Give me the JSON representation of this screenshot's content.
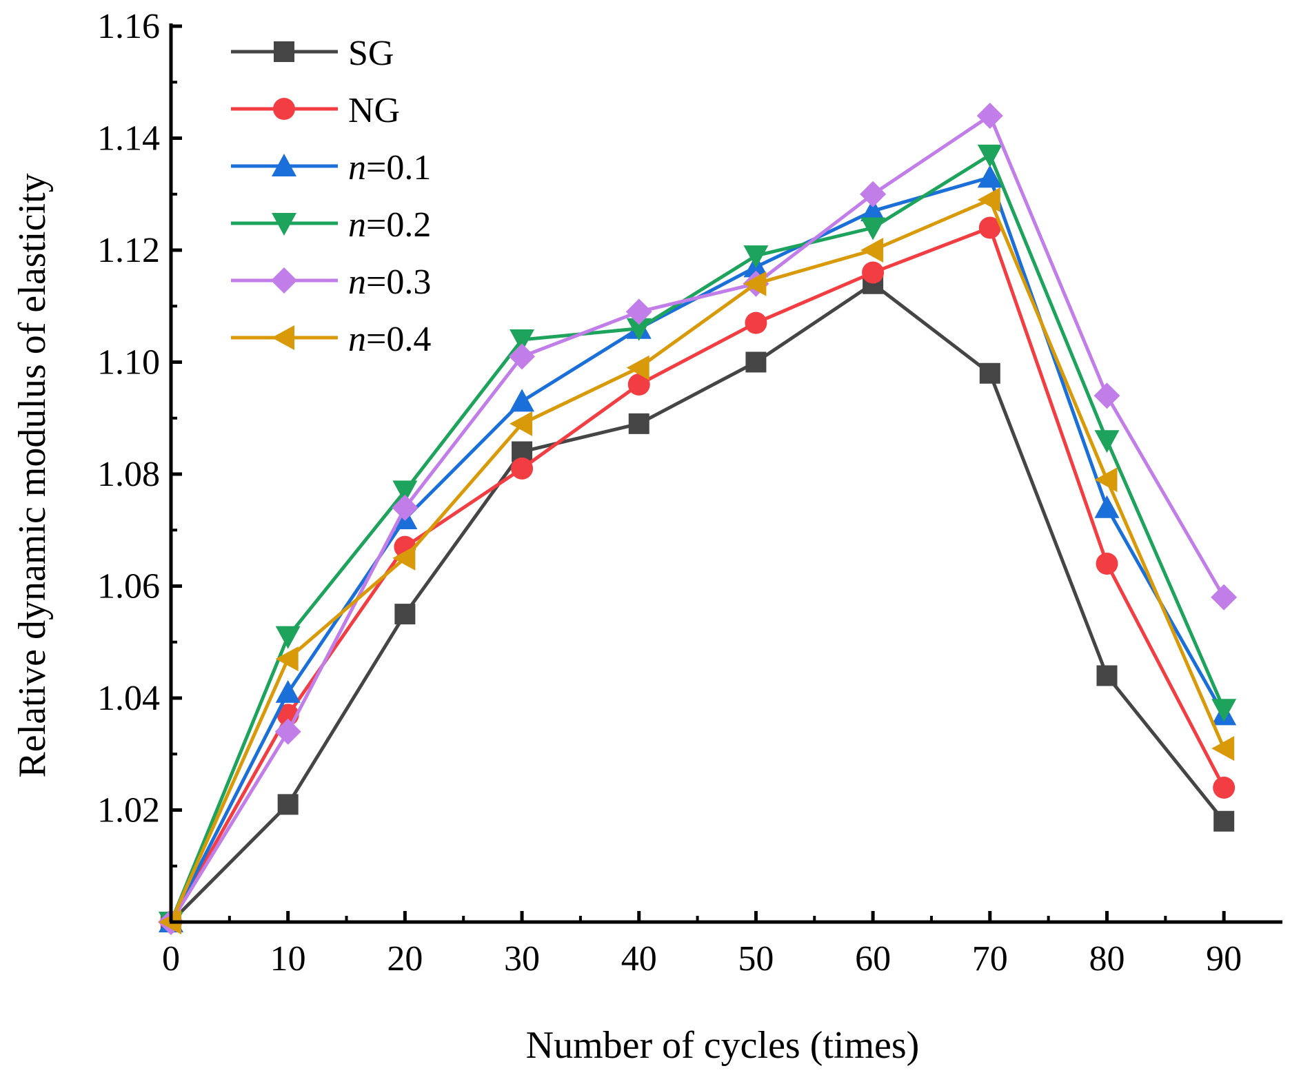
{
  "chart_data": {
    "type": "line",
    "title": "",
    "xlabel": "Number of cycles (times)",
    "ylabel": "Relative dynamic modulus of elasticity",
    "x": [
      0,
      10,
      20,
      30,
      40,
      50,
      60,
      70,
      80,
      90
    ],
    "xlim": [
      0,
      95
    ],
    "ylim": [
      1.0,
      1.16
    ],
    "xticks": [
      "0",
      "10",
      "20",
      "30",
      "40",
      "50",
      "60",
      "70",
      "80",
      "90"
    ],
    "yticks": [
      "1.02",
      "1.04",
      "1.06",
      "1.08",
      "1.10",
      "1.12",
      "1.14",
      "1.16"
    ],
    "ytick_values": [
      1.02,
      1.04,
      1.06,
      1.08,
      1.1,
      1.12,
      1.14,
      1.16
    ],
    "grid": false,
    "legend_position": "top-left",
    "series": [
      {
        "name": "SG",
        "prefix": "",
        "suffix": "SG",
        "marker": "square",
        "color": "#454545",
        "values": [
          1.0,
          1.021,
          1.055,
          1.084,
          1.089,
          1.1,
          1.114,
          1.098,
          1.044,
          1.018
        ]
      },
      {
        "name": "NG",
        "prefix": "",
        "suffix": "NG",
        "marker": "circle",
        "color": "#f23e42",
        "values": [
          1.0,
          1.037,
          1.067,
          1.081,
          1.096,
          1.107,
          1.116,
          1.124,
          1.064,
          1.024
        ]
      },
      {
        "name": "n=0.1",
        "prefix": "n",
        "suffix": "=0.1",
        "marker": "triangle-up",
        "color": "#1b6fd9",
        "values": [
          1.0,
          1.041,
          1.072,
          1.093,
          1.106,
          1.117,
          1.127,
          1.133,
          1.074,
          1.037
        ]
      },
      {
        "name": "n=0.2",
        "prefix": "n",
        "suffix": "=0.2",
        "marker": "triangle-down",
        "color": "#1ea35c",
        "values": [
          1.0,
          1.051,
          1.077,
          1.104,
          1.106,
          1.119,
          1.124,
          1.137,
          1.086,
          1.038
        ]
      },
      {
        "name": "n=0.3",
        "prefix": "n",
        "suffix": "=0.3",
        "marker": "diamond",
        "color": "#c27ee8",
        "values": [
          1.0,
          1.034,
          1.074,
          1.101,
          1.109,
          1.114,
          1.13,
          1.144,
          1.094,
          1.058
        ]
      },
      {
        "name": "n=0.4",
        "prefix": "n",
        "suffix": "=0.4",
        "marker": "triangle-left",
        "color": "#d99a0a",
        "values": [
          1.0,
          1.047,
          1.065,
          1.089,
          1.099,
          1.114,
          1.12,
          1.129,
          1.079,
          1.031
        ]
      }
    ]
  }
}
